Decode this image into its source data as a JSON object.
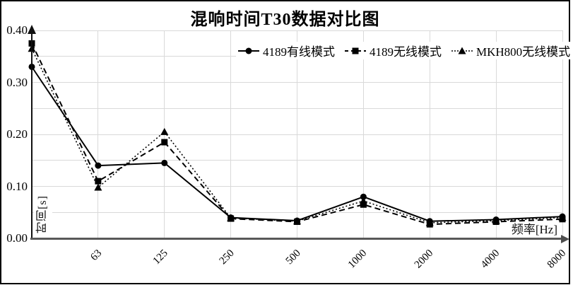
{
  "window": {
    "background": "#ffffff",
    "border_color": "#000000"
  },
  "chart_data": {
    "type": "line",
    "title": "混响时间T30数据对比图",
    "xlabel": "频率[Hz]",
    "ylabel": "时间[s]",
    "ylim": [
      0,
      0.4
    ],
    "gridline_step": 0.05,
    "grid": true,
    "legend_position": "top-center",
    "y_tick_labels": [
      "0.40",
      "0.30",
      "0.20",
      "0.10",
      "0.00"
    ],
    "x_tick_labels": [
      "63",
      "125",
      "250",
      "500",
      "1000",
      "2000",
      "4000",
      "8000"
    ],
    "categories": [
      "",
      "63",
      "125",
      "250",
      "500",
      "1000",
      "2000",
      "4000",
      "8000"
    ],
    "series": [
      {
        "name": "4189有线模式",
        "line": "solid",
        "marker": "circle",
        "color": "#000000",
        "values": [
          0.33,
          0.14,
          0.145,
          0.04,
          0.034,
          0.08,
          0.033,
          0.036,
          0.042
        ]
      },
      {
        "name": "4189无线模式",
        "line": "dashed",
        "marker": "square",
        "color": "#000000",
        "values": [
          0.375,
          0.11,
          0.185,
          0.038,
          0.032,
          0.065,
          0.027,
          0.032,
          0.037
        ]
      },
      {
        "name": "MKH800无线模式",
        "line": "dotted",
        "marker": "triangle",
        "color": "#000000",
        "values": [
          0.365,
          0.098,
          0.205,
          0.039,
          0.033,
          0.072,
          0.03,
          0.034,
          0.04
        ]
      }
    ],
    "colors": {
      "gridline": "#d9d9d9",
      "x_axis": "#595959",
      "y_axis": "#111111",
      "series": "#000000",
      "text": "#000000"
    }
  }
}
